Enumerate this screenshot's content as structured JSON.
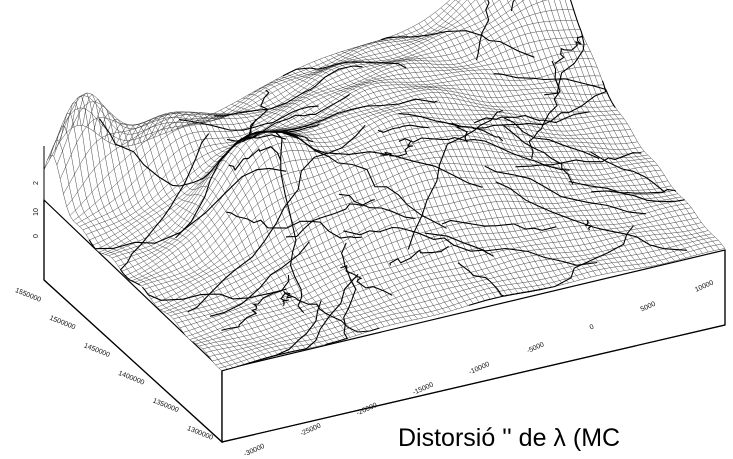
{
  "chart_data": {
    "type": "surface",
    "title": "",
    "xlabel": "",
    "ylabel": "",
    "zlabel": "",
    "grid": true,
    "x_ticks": [
      "-30000",
      "-25000",
      "-20000",
      "-15000",
      "-10000",
      "-5000",
      "0",
      "5000",
      "10000"
    ],
    "y_ticks": [
      "1300000",
      "1350000",
      "1400000",
      "1450000",
      "1500000",
      "1550000"
    ],
    "z_ticks": [
      "2",
      "10",
      "0"
    ],
    "xlim": [
      -30000,
      10000
    ],
    "ylim": [
      1300000,
      1550000
    ],
    "caption": "Distorsió '' de λ (MC"
  }
}
